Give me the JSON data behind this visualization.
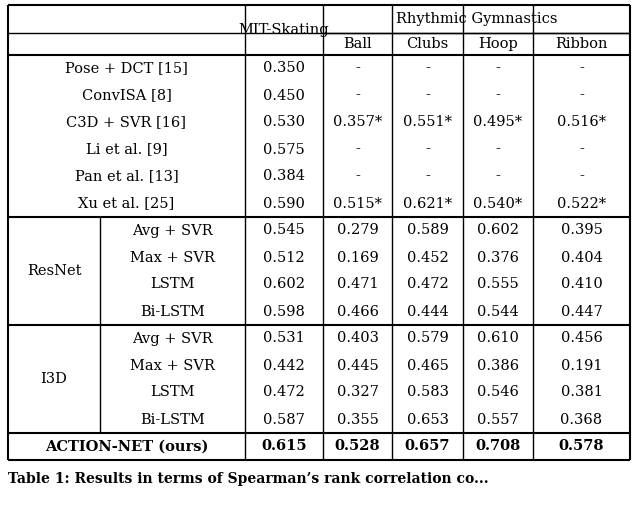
{
  "caption": "Table 1: Results in terms of Spearman’s rank correlation co...",
  "rhythmic_label": "Rhythmic Gymnastics",
  "mit_label": "MIT-Skating",
  "col_headers": [
    "Ball",
    "Clubs",
    "Hoop",
    "Ribbon"
  ],
  "rows": [
    {
      "group": "",
      "method": "Pose + DCT [15]",
      "mit": "0.350",
      "ball": "-",
      "clubs": "-",
      "hoop": "-",
      "ribbon": "-",
      "bold": false
    },
    {
      "group": "",
      "method": "ConvISA [8]",
      "mit": "0.450",
      "ball": "-",
      "clubs": "-",
      "hoop": "-",
      "ribbon": "-",
      "bold": false
    },
    {
      "group": "",
      "method": "C3D + SVR [16]",
      "mit": "0.530",
      "ball": "0.357*",
      "clubs": "0.551*",
      "hoop": "0.495*",
      "ribbon": "0.516*",
      "bold": false
    },
    {
      "group": "",
      "method": "Li et al. [9]",
      "mit": "0.575",
      "ball": "-",
      "clubs": "-",
      "hoop": "-",
      "ribbon": "-",
      "bold": false
    },
    {
      "group": "",
      "method": "Pan et al. [13]",
      "mit": "0.384",
      "ball": "-",
      "clubs": "-",
      "hoop": "-",
      "ribbon": "-",
      "bold": false
    },
    {
      "group": "",
      "method": "Xu et al. [25]",
      "mit": "0.590",
      "ball": "0.515*",
      "clubs": "0.621*",
      "hoop": "0.540*",
      "ribbon": "0.522*",
      "bold": false
    },
    {
      "group": "ResNet",
      "method": "Avg + SVR",
      "mit": "0.545",
      "ball": "0.279",
      "clubs": "0.589",
      "hoop": "0.602",
      "ribbon": "0.395",
      "bold": false
    },
    {
      "group": "ResNet",
      "method": "Max + SVR",
      "mit": "0.512",
      "ball": "0.169",
      "clubs": "0.452",
      "hoop": "0.376",
      "ribbon": "0.404",
      "bold": false
    },
    {
      "group": "ResNet",
      "method": "LSTM",
      "mit": "0.602",
      "ball": "0.471",
      "clubs": "0.472",
      "hoop": "0.555",
      "ribbon": "0.410",
      "bold": false
    },
    {
      "group": "ResNet",
      "method": "Bi-LSTM",
      "mit": "0.598",
      "ball": "0.466",
      "clubs": "0.444",
      "hoop": "0.544",
      "ribbon": "0.447",
      "bold": false
    },
    {
      "group": "I3D",
      "method": "Avg + SVR",
      "mit": "0.531",
      "ball": "0.403",
      "clubs": "0.579",
      "hoop": "0.610",
      "ribbon": "0.456",
      "bold": false
    },
    {
      "group": "I3D",
      "method": "Max + SVR",
      "mit": "0.442",
      "ball": "0.445",
      "clubs": "0.465",
      "hoop": "0.386",
      "ribbon": "0.191",
      "bold": false
    },
    {
      "group": "I3D",
      "method": "LSTM",
      "mit": "0.472",
      "ball": "0.327",
      "clubs": "0.583",
      "hoop": "0.546",
      "ribbon": "0.381",
      "bold": false
    },
    {
      "group": "I3D",
      "method": "Bi-LSTM",
      "mit": "0.587",
      "ball": "0.355",
      "clubs": "0.653",
      "hoop": "0.557",
      "ribbon": "0.368",
      "bold": false
    },
    {
      "group": "",
      "method": "ACTION-NET (ours)",
      "mit": "0.615",
      "ball": "0.528",
      "clubs": "0.657",
      "hoop": "0.708",
      "ribbon": "0.578",
      "bold": true
    }
  ],
  "font_size": 10.5,
  "caption_fontsize": 10,
  "bg_color": "#ffffff",
  "line_color": "#000000",
  "lw_outer": 1.5,
  "lw_inner": 1.0
}
